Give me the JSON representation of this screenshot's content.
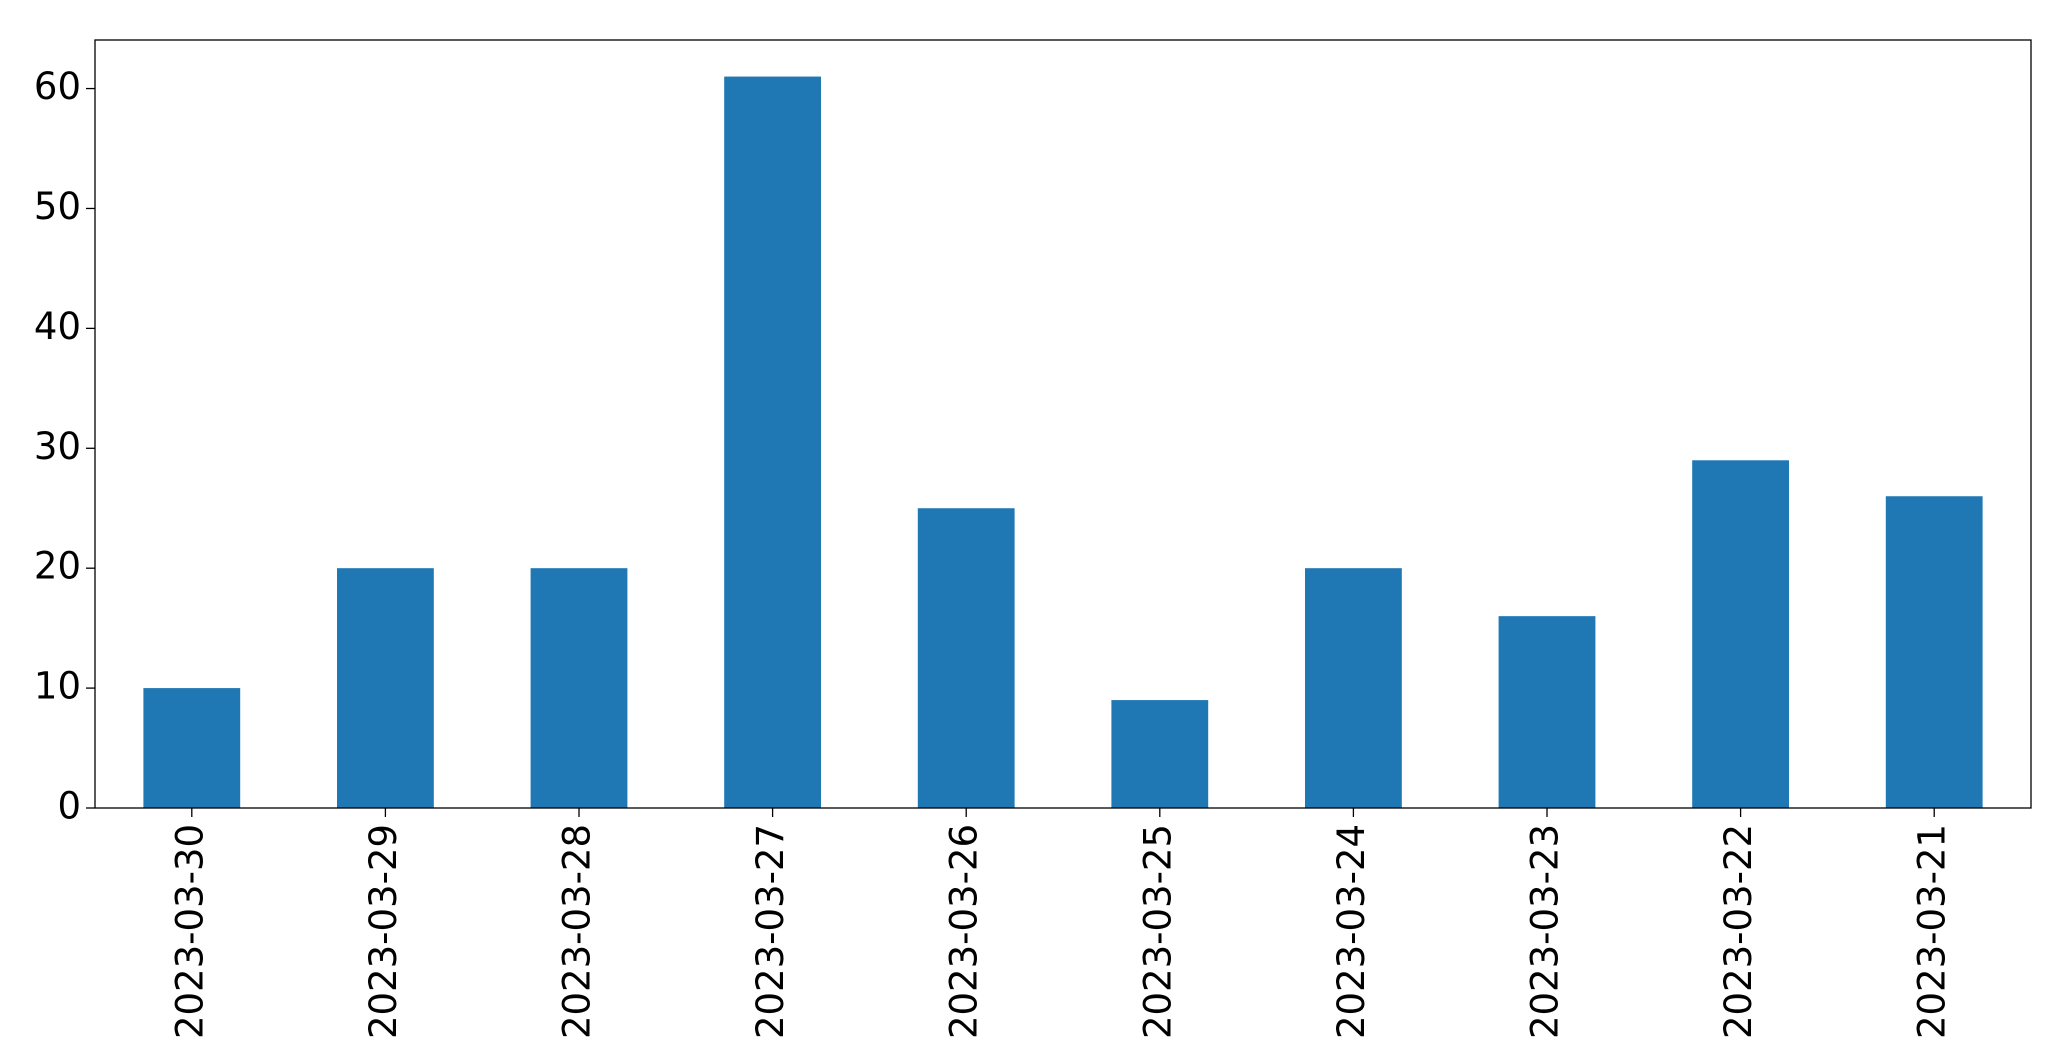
{
  "chart_data": {
    "type": "bar",
    "categories": [
      "2023-03-30",
      "2023-03-29",
      "2023-03-28",
      "2023-03-27",
      "2023-03-26",
      "2023-03-25",
      "2023-03-24",
      "2023-03-23",
      "2023-03-22",
      "2023-03-21"
    ],
    "values": [
      10,
      20,
      20,
      61,
      25,
      9,
      20,
      16,
      29,
      26
    ],
    "color": "#1f77b4",
    "ylim": [
      0,
      64.05
    ],
    "yticks": [
      0,
      10,
      20,
      30,
      40,
      50,
      60
    ],
    "grid": false
  }
}
